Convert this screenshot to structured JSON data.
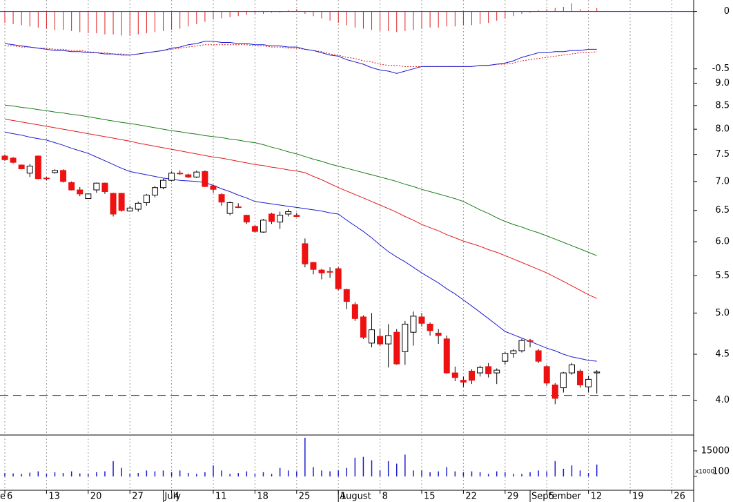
{
  "chart_data": {
    "type": "candlestick",
    "categories": [
      "6",
      null,
      null,
      null,
      null,
      "13",
      null,
      null,
      null,
      null,
      "20",
      null,
      null,
      null,
      null,
      "27",
      null,
      null,
      null,
      null,
      "4",
      null,
      null,
      null,
      null,
      "11",
      null,
      null,
      null,
      null,
      "18",
      null,
      null,
      null,
      null,
      "25",
      null,
      null,
      null,
      null,
      "1",
      null,
      null,
      null,
      null,
      "8",
      null,
      null,
      null,
      null,
      "15",
      null,
      null,
      null,
      null,
      "22",
      null,
      null,
      null,
      null,
      "29",
      null,
      null,
      null,
      null,
      "5",
      null,
      null,
      null,
      null,
      "12",
      null,
      null,
      null,
      null,
      "19",
      null,
      null,
      null,
      null,
      "26"
    ],
    "months": [
      "e",
      null,
      null,
      null,
      null,
      null,
      null,
      null,
      null,
      null,
      null,
      null,
      null,
      null,
      null,
      null,
      null,
      null,
      null,
      "July",
      null,
      null,
      null,
      null,
      null,
      null,
      null,
      null,
      null,
      null,
      null,
      null,
      null,
      null,
      null,
      null,
      null,
      null,
      null,
      null,
      "August",
      null,
      null,
      null,
      null,
      null,
      null,
      null,
      null,
      null,
      null,
      null,
      null,
      null,
      null,
      null,
      null,
      null,
      null,
      null,
      null,
      null,
      null,
      "September",
      null,
      null,
      null,
      null,
      null,
      null,
      null,
      null,
      null,
      null,
      null,
      null,
      null,
      null,
      null,
      null,
      null
    ],
    "open": [
      7.47,
      7.43,
      7.3,
      7.15,
      7.47,
      7.06,
      7.16,
      7.2,
      6.98,
      6.85,
      6.7,
      6.85,
      6.97,
      6.79,
      6.79,
      6.49,
      6.52,
      6.63,
      6.76,
      6.89,
      7.02,
      7.15,
      7.12,
      7.08,
      7.18,
      6.92,
      6.77,
      6.45,
      6.56,
      6.42,
      6.24,
      6.15,
      6.44,
      6.31,
      6.44,
      6.42,
      5.97,
      5.69,
      5.58,
      5.56,
      5.6,
      5.31,
      5.11,
      4.95,
      4.63,
      4.71,
      4.62,
      4.76,
      4.53,
      4.76,
      4.95,
      4.86,
      4.75,
      4.68,
      4.29,
      4.21,
      4.31,
      4.29,
      4.36,
      4.29,
      4.42,
      4.51,
      4.54,
      4.66,
      4.54,
      4.36,
      4.16,
      4.13,
      4.29,
      4.31,
      4.14,
      4.29,
      null,
      null,
      null,
      null,
      null,
      null,
      null,
      null,
      null
    ],
    "high": [
      7.5,
      7.45,
      7.31,
      7.32,
      7.48,
      7.08,
      7.22,
      7.22,
      7.0,
      6.9,
      6.79,
      6.98,
      6.98,
      6.8,
      6.8,
      6.58,
      6.65,
      6.78,
      6.92,
      7.05,
      7.18,
      7.2,
      7.14,
      7.2,
      7.2,
      6.94,
      6.79,
      6.65,
      6.62,
      6.43,
      6.26,
      6.36,
      6.46,
      6.48,
      6.52,
      6.46,
      6.05,
      5.7,
      5.6,
      5.62,
      5.62,
      5.32,
      5.14,
      4.97,
      5.0,
      4.8,
      4.86,
      4.8,
      4.9,
      5.02,
      5.0,
      4.88,
      4.8,
      4.72,
      4.36,
      4.25,
      4.33,
      4.37,
      4.4,
      4.34,
      4.53,
      4.56,
      4.68,
      4.68,
      4.56,
      4.38,
      4.18,
      4.3,
      4.4,
      4.33,
      4.26,
      4.32,
      null,
      null,
      null,
      null,
      null,
      null,
      null,
      null,
      null
    ],
    "low": [
      7.38,
      7.33,
      7.22,
      7.08,
      7.04,
      7.02,
      7.14,
      6.98,
      6.84,
      6.74,
      6.7,
      6.8,
      6.78,
      6.4,
      6.48,
      6.48,
      6.48,
      6.58,
      6.72,
      6.86,
      7.0,
      7.12,
      7.06,
      7.06,
      6.9,
      6.8,
      6.58,
      6.42,
      6.54,
      6.28,
      6.14,
      6.14,
      6.28,
      6.2,
      6.4,
      6.39,
      5.62,
      5.52,
      5.45,
      5.47,
      5.3,
      5.05,
      4.9,
      4.68,
      4.58,
      4.6,
      4.35,
      4.38,
      4.38,
      4.6,
      4.83,
      4.72,
      4.62,
      4.28,
      4.2,
      4.14,
      4.17,
      4.25,
      4.24,
      4.17,
      4.38,
      4.46,
      4.52,
      4.58,
      4.4,
      4.15,
      3.96,
      4.08,
      4.27,
      4.13,
      4.08,
      4.07,
      null,
      null,
      null,
      null,
      null,
      null,
      null,
      null,
      null
    ],
    "close": [
      7.4,
      7.35,
      7.23,
      7.28,
      7.05,
      7.05,
      7.2,
      7.0,
      6.85,
      6.78,
      6.78,
      6.97,
      6.82,
      6.44,
      6.5,
      6.54,
      6.62,
      6.76,
      6.89,
      7.02,
      7.15,
      7.14,
      7.08,
      7.17,
      6.91,
      6.86,
      6.64,
      6.63,
      6.55,
      6.31,
      6.16,
      6.34,
      6.32,
      6.42,
      6.48,
      6.4,
      5.67,
      5.59,
      5.54,
      5.55,
      5.32,
      5.15,
      4.93,
      4.7,
      4.79,
      4.62,
      4.72,
      4.39,
      4.86,
      4.96,
      4.87,
      4.78,
      4.72,
      4.29,
      4.24,
      4.19,
      4.21,
      4.35,
      4.28,
      4.32,
      4.51,
      4.54,
      4.66,
      4.65,
      4.42,
      4.18,
      4.02,
      4.29,
      4.38,
      4.16,
      4.22,
      4.3,
      null,
      null,
      null,
      null,
      null,
      null,
      null,
      null,
      null
    ],
    "up_color": "#ffffff",
    "down_color": "#ee1111",
    "price_scale": "log",
    "ylim": [
      3.66,
      9.2
    ],
    "yticks": [
      {
        "value": 4,
        "label": "4.0"
      },
      4.5,
      {
        "value": 5,
        "label": "5.0"
      },
      5.5,
      {
        "value": 6,
        "label": "6.0"
      },
      6.5,
      {
        "value": 7,
        "label": "7.0"
      },
      7.5,
      {
        "value": 8,
        "label": "8.0"
      },
      8.5,
      {
        "value": 9,
        "label": "9.0"
      }
    ],
    "support_line": 4.05,
    "support_color": "#1a2a9a",
    "moving_averages": [
      {
        "color": "#1a1ad0",
        "values": [
          7.94,
          7.91,
          7.88,
          7.84,
          7.81,
          7.78,
          7.73,
          7.68,
          7.62,
          7.57,
          7.52,
          7.45,
          7.38,
          7.31,
          7.24,
          7.18,
          7.15,
          7.12,
          7.09,
          7.06,
          7.04,
          7.02,
          7.01,
          7.0,
          6.98,
          6.93,
          6.87,
          6.82,
          6.76,
          6.71,
          6.65,
          6.63,
          6.61,
          6.59,
          6.57,
          6.55,
          6.53,
          6.51,
          6.49,
          6.46,
          6.44,
          6.34,
          6.25,
          6.16,
          6.06,
          5.95,
          5.85,
          5.77,
          5.7,
          5.62,
          5.54,
          5.47,
          5.4,
          5.32,
          5.25,
          5.17,
          5.09,
          5.01,
          4.93,
          4.85,
          4.77,
          4.73,
          4.69,
          4.65,
          4.61,
          4.57,
          4.54,
          4.5,
          4.47,
          4.45,
          4.43,
          4.42,
          null,
          null,
          null,
          null,
          null,
          null,
          null,
          null,
          null
        ]
      },
      {
        "color": "#e01a1a",
        "values": [
          8.21,
          8.18,
          8.15,
          8.12,
          8.09,
          8.06,
          8.03,
          8.0,
          7.97,
          7.94,
          7.91,
          7.88,
          7.85,
          7.82,
          7.79,
          7.76,
          7.72,
          7.69,
          7.66,
          7.63,
          7.6,
          7.57,
          7.54,
          7.51,
          7.48,
          7.45,
          7.43,
          7.4,
          7.37,
          7.34,
          7.31,
          7.29,
          7.26,
          7.24,
          7.21,
          7.19,
          7.16,
          7.09,
          7.03,
          6.96,
          6.89,
          6.83,
          6.77,
          6.71,
          6.65,
          6.59,
          6.53,
          6.47,
          6.4,
          6.34,
          6.27,
          6.22,
          6.17,
          6.11,
          6.06,
          6.01,
          5.97,
          5.93,
          5.88,
          5.84,
          5.79,
          5.74,
          5.69,
          5.64,
          5.59,
          5.54,
          5.48,
          5.42,
          5.36,
          5.3,
          5.24,
          5.19,
          null,
          null,
          null,
          null,
          null,
          null,
          null,
          null,
          null
        ]
      },
      {
        "color": "#1a7a1a",
        "values": [
          8.51,
          8.49,
          8.46,
          8.44,
          8.41,
          8.39,
          8.36,
          8.34,
          8.31,
          8.29,
          8.26,
          8.23,
          8.2,
          8.17,
          8.14,
          8.12,
          8.09,
          8.06,
          8.03,
          8.0,
          7.97,
          7.95,
          7.92,
          7.9,
          7.87,
          7.85,
          7.83,
          7.8,
          7.78,
          7.75,
          7.73,
          7.69,
          7.64,
          7.6,
          7.55,
          7.51,
          7.46,
          7.41,
          7.37,
          7.32,
          7.28,
          7.24,
          7.2,
          7.16,
          7.12,
          7.08,
          7.04,
          7.0,
          6.95,
          6.91,
          6.86,
          6.82,
          6.78,
          6.74,
          6.7,
          6.65,
          6.58,
          6.51,
          6.45,
          6.38,
          6.32,
          6.27,
          6.23,
          6.18,
          6.14,
          6.09,
          6.04,
          5.99,
          5.94,
          5.89,
          5.84,
          5.79,
          null,
          null,
          null,
          null,
          null,
          null,
          null,
          null,
          null
        ]
      }
    ],
    "macd": {
      "ylim": [
        -0.55,
        0.1
      ],
      "yticks": [
        0,
        -0.5
      ],
      "line": {
        "color": "#1a1ad0",
        "values": [
          -0.28,
          -0.29,
          -0.3,
          -0.31,
          -0.32,
          -0.33,
          -0.34,
          -0.34,
          -0.35,
          -0.35,
          -0.36,
          -0.36,
          -0.37,
          -0.37,
          -0.38,
          -0.38,
          -0.37,
          -0.36,
          -0.35,
          -0.34,
          -0.32,
          -0.31,
          -0.29,
          -0.28,
          -0.26,
          -0.26,
          -0.27,
          -0.27,
          -0.28,
          -0.28,
          -0.29,
          -0.29,
          -0.3,
          -0.3,
          -0.31,
          -0.31,
          -0.33,
          -0.34,
          -0.36,
          -0.38,
          -0.39,
          -0.42,
          -0.44,
          -0.46,
          -0.49,
          -0.51,
          -0.52,
          -0.54,
          -0.52,
          -0.5,
          -0.48,
          -0.48,
          -0.48,
          -0.48,
          -0.48,
          -0.48,
          -0.48,
          -0.47,
          -0.47,
          -0.46,
          -0.45,
          -0.43,
          -0.4,
          -0.38,
          -0.36,
          -0.36,
          -0.35,
          -0.35,
          -0.34,
          -0.34,
          -0.33,
          -0.33,
          null,
          null,
          null,
          null,
          null,
          null,
          null,
          null,
          null
        ]
      },
      "signal": {
        "color": "#e01a1a",
        "values": [
          -0.3,
          -0.3,
          -0.31,
          -0.31,
          -0.32,
          -0.32,
          -0.33,
          -0.33,
          -0.34,
          -0.34,
          -0.35,
          -0.36,
          -0.36,
          -0.37,
          -0.37,
          -0.38,
          -0.37,
          -0.36,
          -0.35,
          -0.34,
          -0.33,
          -0.32,
          -0.31,
          -0.3,
          -0.29,
          -0.29,
          -0.29,
          -0.29,
          -0.29,
          -0.29,
          -0.3,
          -0.3,
          -0.31,
          -0.31,
          -0.32,
          -0.32,
          -0.33,
          -0.34,
          -0.35,
          -0.37,
          -0.38,
          -0.4,
          -0.41,
          -0.43,
          -0.44,
          -0.46,
          -0.47,
          -0.47,
          -0.48,
          -0.48,
          -0.48,
          -0.48,
          -0.48,
          -0.48,
          -0.48,
          -0.48,
          -0.48,
          -0.47,
          -0.47,
          -0.46,
          -0.46,
          -0.45,
          -0.43,
          -0.42,
          -0.41,
          -0.4,
          -0.39,
          -0.38,
          -0.37,
          -0.36,
          -0.36,
          -0.35,
          null,
          null,
          null,
          null,
          null,
          null,
          null,
          null,
          null
        ]
      },
      "histogram": {
        "color": "#e01a1a",
        "values": [
          -0.1,
          -0.11,
          -0.12,
          -0.13,
          -0.14,
          -0.15,
          -0.16,
          -0.16,
          -0.17,
          -0.18,
          -0.19,
          -0.19,
          -0.2,
          -0.2,
          -0.21,
          -0.21,
          -0.2,
          -0.19,
          -0.18,
          -0.17,
          -0.16,
          -0.15,
          -0.13,
          -0.11,
          -0.09,
          -0.07,
          -0.06,
          -0.05,
          -0.04,
          -0.03,
          -0.02,
          -0.02,
          -0.01,
          -0.01,
          0.01,
          0.02,
          -0.02,
          -0.04,
          -0.06,
          -0.08,
          -0.1,
          -0.12,
          -0.14,
          -0.15,
          -0.16,
          -0.17,
          -0.17,
          -0.18,
          -0.17,
          -0.16,
          -0.15,
          -0.14,
          -0.14,
          -0.13,
          -0.13,
          -0.12,
          -0.12,
          -0.11,
          -0.1,
          -0.08,
          -0.06,
          -0.04,
          -0.02,
          -0.01,
          0.01,
          0.02,
          0.03,
          0.04,
          0.07,
          0.02,
          0.01,
          0.03,
          null,
          null,
          null,
          null,
          null,
          null,
          null,
          null,
          null
        ]
      }
    },
    "volume": {
      "ylim": [
        0,
        23500
      ],
      "yticks": [
        15000,
        100
      ],
      "unit_label": "x1000",
      "color": "#1a1ad0",
      "values": [
        2000,
        1800,
        1500,
        2200,
        3000,
        1500,
        2500,
        2000,
        3000,
        1800,
        1500,
        2500,
        3000,
        9000,
        5000,
        1500,
        2000,
        3500,
        3000,
        3500,
        2500,
        3500,
        2000,
        1500,
        2500,
        6500,
        3500,
        1500,
        2000,
        3000,
        1500,
        2500,
        1500,
        5000,
        3500,
        3000,
        22700,
        5500,
        3500,
        3000,
        3500,
        5000,
        11000,
        11500,
        9500,
        3500,
        9000,
        7500,
        12800,
        3500,
        3500,
        2500,
        3000,
        5500,
        3000,
        2500,
        3000,
        2500,
        1500,
        3000,
        2500,
        1500,
        1500,
        2500,
        3500,
        3000,
        9000,
        4500,
        6500,
        3500,
        2000,
        7000,
        null,
        null,
        null,
        null,
        null,
        null,
        null,
        null,
        null
      ]
    }
  }
}
